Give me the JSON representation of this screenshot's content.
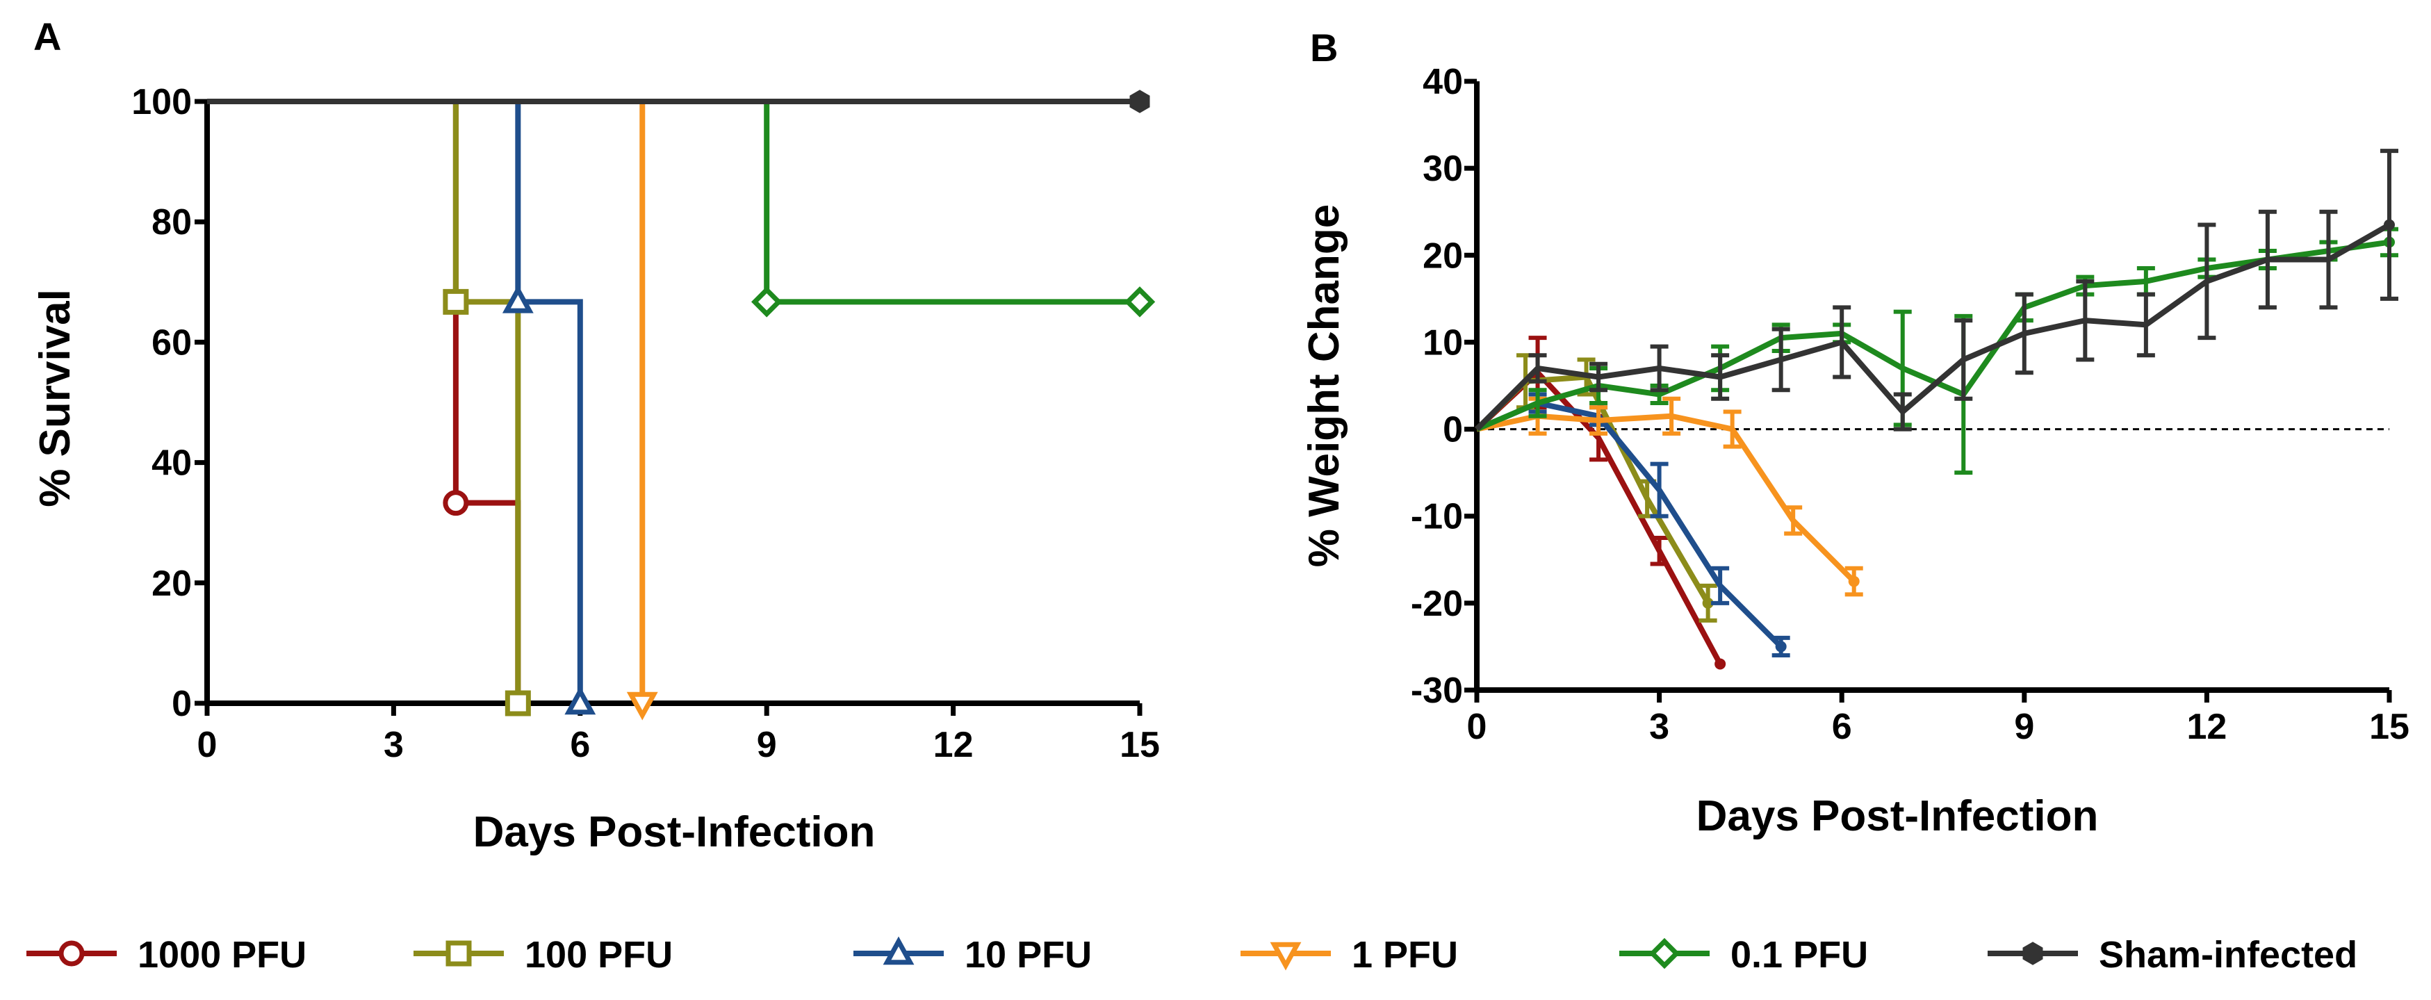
{
  "colors": {
    "1000 PFU": "#9b1111",
    "100 PFU": "#8c8c1a",
    "10 PFU": "#1f4e8c",
    "1 PFU": "#f7931e",
    "0.1 PFU": "#1e8a1e",
    "Sham-infected": "#333333"
  },
  "legend": {
    "entries": [
      {
        "label": "1000 PFU",
        "marker": "circle"
      },
      {
        "label": "100 PFU",
        "marker": "square"
      },
      {
        "label": "10 PFU",
        "marker": "triangle-up"
      },
      {
        "label": "1 PFU",
        "marker": "triangle-down"
      },
      {
        "label": "0.1 PFU",
        "marker": "diamond"
      },
      {
        "label": "Sham-infected",
        "marker": "hexagon"
      }
    ]
  },
  "chart_data": [
    {
      "panel": "A",
      "type": "line",
      "step": true,
      "xlabel": "Days Post-Infection",
      "ylabel": "% Survival",
      "xlim": [
        0,
        15
      ],
      "ylim": [
        0,
        100
      ],
      "xticks": [
        0,
        3,
        6,
        9,
        12,
        15
      ],
      "yticks": [
        0,
        20,
        40,
        60,
        80,
        100
      ],
      "series": [
        {
          "name": "1000 PFU",
          "points": [
            [
              0,
              100
            ],
            [
              4,
              100
            ],
            [
              4,
              33.3
            ],
            [
              5,
              33.3
            ],
            [
              5,
              0
            ]
          ],
          "markers": [
            [
              4,
              33.3
            ],
            [
              5,
              0
            ]
          ]
        },
        {
          "name": "100 PFU",
          "points": [
            [
              0,
              100
            ],
            [
              4,
              100
            ],
            [
              4,
              66.7
            ],
            [
              5,
              66.7
            ],
            [
              5,
              0
            ]
          ],
          "markers": [
            [
              4,
              66.7
            ],
            [
              5,
              0
            ]
          ]
        },
        {
          "name": "10 PFU",
          "points": [
            [
              0,
              100
            ],
            [
              5,
              100
            ],
            [
              5,
              66.7
            ],
            [
              6,
              66.7
            ],
            [
              6,
              0
            ]
          ],
          "markers": [
            [
              5,
              66.7
            ],
            [
              6,
              0
            ]
          ]
        },
        {
          "name": "1 PFU",
          "points": [
            [
              0,
              100
            ],
            [
              7,
              100
            ],
            [
              7,
              0
            ]
          ],
          "markers": [
            [
              7,
              0
            ]
          ]
        },
        {
          "name": "0.1 PFU",
          "points": [
            [
              0,
              100
            ],
            [
              9,
              100
            ],
            [
              9,
              66.7
            ],
            [
              15,
              66.7
            ]
          ],
          "markers": [
            [
              9,
              66.7
            ],
            [
              15,
              66.7
            ]
          ]
        },
        {
          "name": "Sham-infected",
          "points": [
            [
              0,
              100
            ],
            [
              15,
              100
            ]
          ],
          "markers": [
            [
              15,
              100
            ]
          ]
        }
      ]
    },
    {
      "panel": "B",
      "type": "line",
      "xlabel": "Days Post-Infection",
      "ylabel": "% Weight Change",
      "xlim": [
        0,
        15
      ],
      "ylim": [
        -30,
        40
      ],
      "xticks": [
        0,
        3,
        6,
        9,
        12,
        15
      ],
      "yticks": [
        -30,
        -20,
        -10,
        0,
        10,
        20,
        30,
        40
      ],
      "reference_line": 0,
      "series": [
        {
          "name": "1000 PFU",
          "x": [
            0,
            1,
            2,
            3,
            4
          ],
          "y": [
            0,
            6.5,
            -1,
            -14,
            -27
          ],
          "err": [
            0,
            4,
            2.5,
            1.5,
            0
          ]
        },
        {
          "name": "100 PFU",
          "x": [
            0,
            0.8,
            1.8,
            2.8,
            3.8
          ],
          "y": [
            0,
            5.5,
            6,
            -8,
            -20
          ],
          "err": [
            0,
            3,
            2,
            2,
            2
          ]
        },
        {
          "name": "10 PFU",
          "x": [
            0,
            1,
            2,
            3,
            4,
            5
          ],
          "y": [
            0,
            3,
            1.5,
            -7,
            -18,
            -25
          ],
          "err": [
            0,
            1,
            1,
            3,
            2,
            1
          ]
        },
        {
          "name": "1 PFU",
          "x": [
            0,
            1,
            2,
            3.2,
            4.2,
            5.2,
            6.2
          ],
          "y": [
            0,
            1.5,
            1,
            1.5,
            0,
            -10.5,
            -17.5
          ],
          "err": [
            0,
            2,
            1.5,
            2,
            2,
            1.5,
            1.5
          ]
        },
        {
          "name": "0.1 PFU",
          "x": [
            0,
            1,
            2,
            3,
            4,
            5,
            6,
            7,
            8,
            9,
            10,
            11,
            12,
            13,
            14,
            15
          ],
          "y": [
            0,
            3,
            5,
            4,
            7,
            10.5,
            11,
            7,
            4,
            14,
            16.5,
            17,
            18.5,
            19.5,
            20.5,
            21.5
          ],
          "err": [
            0,
            1.5,
            2,
            1,
            2.5,
            1.5,
            1,
            6.5,
            9,
            1.5,
            1,
            1.5,
            1,
            1,
            1,
            1.5
          ]
        },
        {
          "name": "Sham-infected",
          "x": [
            0,
            1,
            2,
            3,
            4,
            5,
            6,
            7,
            8,
            9,
            10,
            11,
            12,
            13,
            14,
            15
          ],
          "y": [
            0,
            7,
            6,
            7,
            6,
            8,
            10,
            2,
            8,
            11,
            12.5,
            12,
            17,
            19.5,
            19.5,
            23.5
          ],
          "err": [
            0,
            1.5,
            1.5,
            2.5,
            2.5,
            3.5,
            4,
            2,
            4.5,
            4.5,
            4.5,
            3.5,
            6.5,
            5.5,
            5.5,
            8.5
          ]
        }
      ]
    }
  ]
}
